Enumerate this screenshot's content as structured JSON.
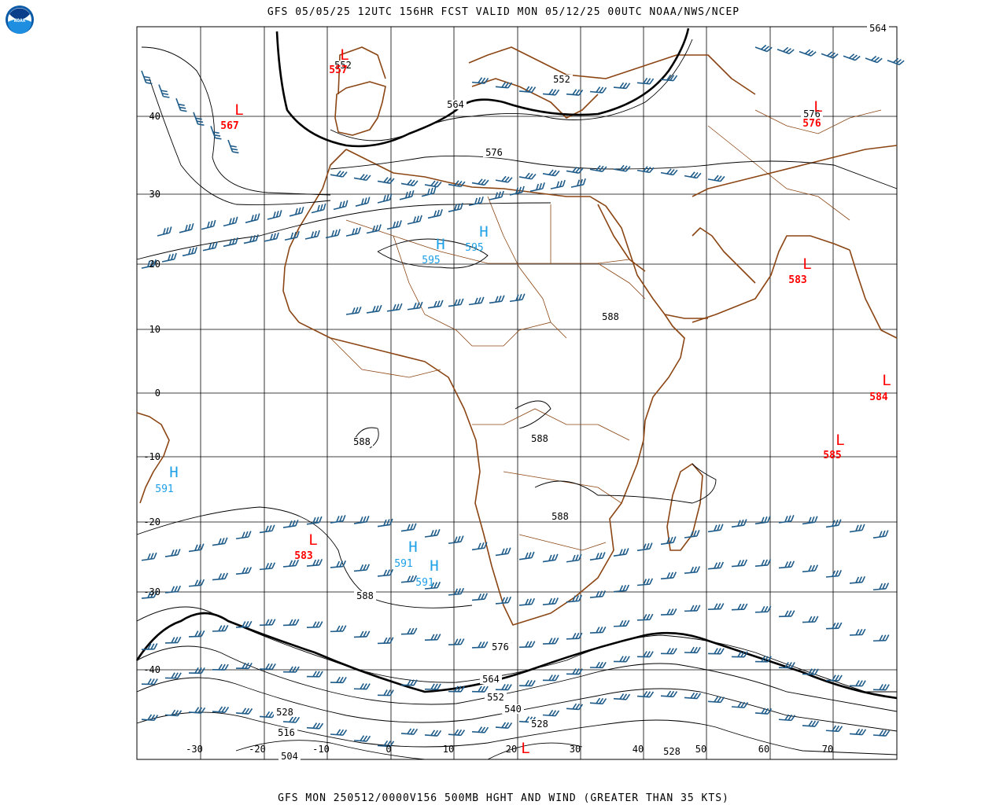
{
  "header": {
    "title": "GFS 05/05/25 12UTC 156HR FCST VALID MON 05/12/25 00UTC NOAA/NWS/NCEP"
  },
  "footer": {
    "title": "GFS MON 250512/0000V156 500MB HGHT AND WIND (GREATER THAN 35 KTS)"
  },
  "logo": {
    "text": "NOAA"
  },
  "axes": {
    "lon_labels": [
      "-30",
      "-20",
      "-10",
      "0",
      "10",
      "20",
      "30",
      "40",
      "50",
      "60",
      "70"
    ],
    "lat_labels": [
      "40",
      "30",
      "20",
      "10",
      "0",
      "-10",
      "-20",
      "-30",
      "-40"
    ]
  },
  "colors": {
    "contour": "#000000",
    "coast": "#8B4513",
    "barb": "#1F5C8A",
    "low": "#FF0000",
    "high": "#1EA0E6"
  },
  "pressure_centers": [
    {
      "type": "L",
      "value": "557"
    },
    {
      "type": "L",
      "value": "567"
    },
    {
      "type": "L",
      "value": "576"
    },
    {
      "type": "L",
      "value": "583"
    },
    {
      "type": "L",
      "value": "584"
    },
    {
      "type": "L",
      "value": "585"
    },
    {
      "type": "L",
      "value": "583"
    },
    {
      "type": "L",
      "value": ""
    },
    {
      "type": "H",
      "value": "595"
    },
    {
      "type": "H",
      "value": "595"
    },
    {
      "type": "H",
      "value": "591"
    },
    {
      "type": "H",
      "value": "591"
    },
    {
      "type": "H",
      "value": "591"
    }
  ],
  "contour_labels": [
    "552",
    "552",
    "564",
    "576",
    "588",
    "588",
    "588",
    "588",
    "588",
    "576",
    "564",
    "552",
    "540",
    "528",
    "528",
    "516",
    "504",
    "528",
    "576",
    "564"
  ]
}
